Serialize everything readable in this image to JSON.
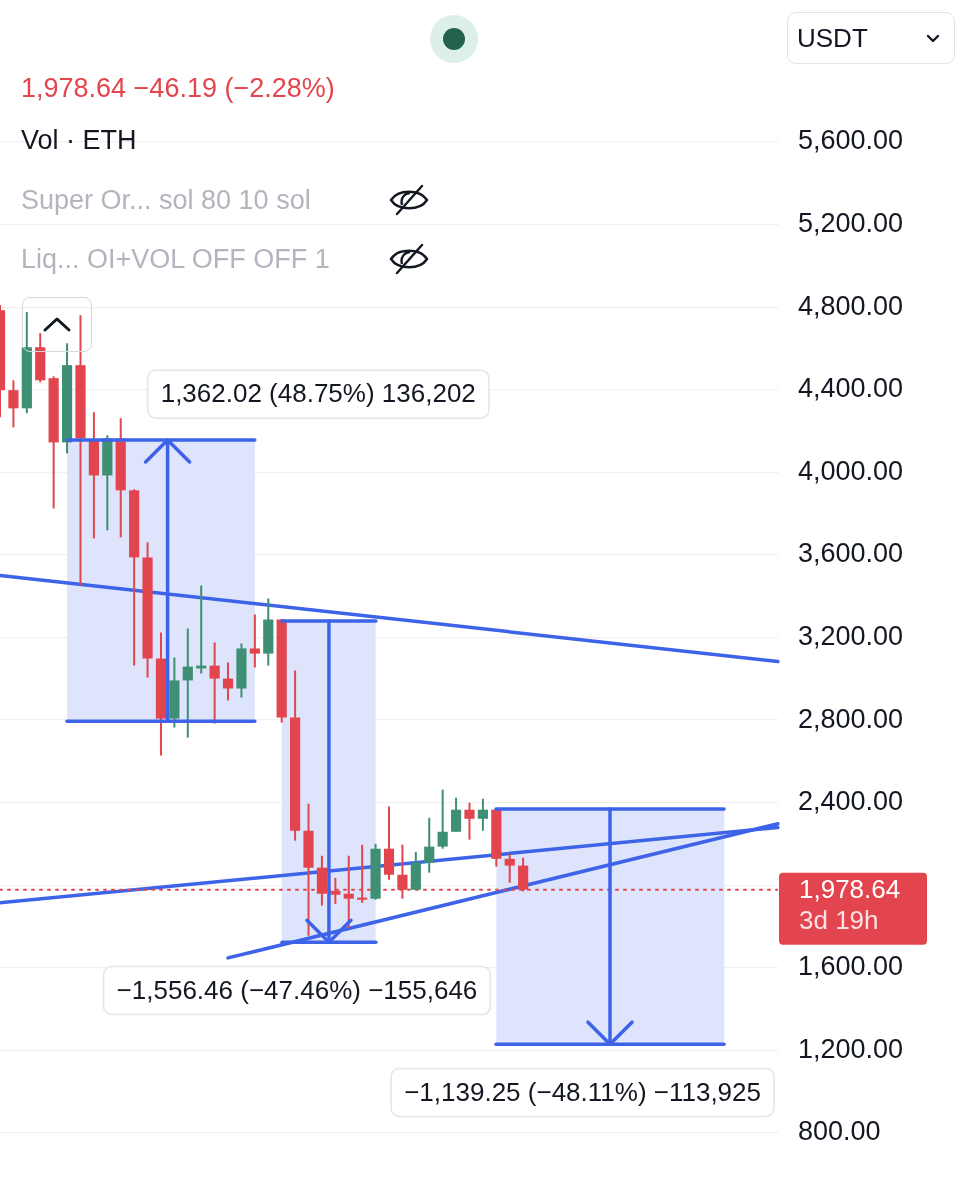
{
  "chart_data": {
    "type": "candlestick",
    "subtitle": "1,978.64 −46.19 (−2.28%)",
    "ylabel": "USDT",
    "annotations": [
      "Vol · ETH",
      "Super Or... sol 80 10 sol",
      "Liq... OI+VOL OFF OFF 1"
    ],
    "categories": [
      null,
      null,
      null,
      null,
      null,
      null,
      null,
      null,
      null,
      null,
      null,
      null,
      null,
      null,
      null,
      null,
      null,
      null,
      null,
      null,
      null,
      null,
      null,
      null,
      null,
      null,
      null,
      null,
      null,
      null,
      null,
      null,
      null,
      null,
      null,
      null,
      null,
      null,
      null,
      null,
      null,
      null,
      null,
      null,
      null,
      null,
      null,
      null,
      null,
      null,
      null,
      null,
      null,
      null,
      null,
      null,
      null,
      null,
      null
    ],
    "series": [
      {
        "ohlc": [
          [
            4785,
            4810,
            4267,
            4398
          ],
          [
            4398,
            4446,
            4218,
            4310
          ],
          [
            4310,
            4776,
            4286,
            4606
          ],
          [
            4606,
            4674,
            4436,
            4446
          ],
          [
            4456,
            4465,
            3825,
            4145
          ],
          [
            4145,
            4625,
            4092,
            4519
          ],
          [
            4519,
            4761,
            3452,
            4165
          ],
          [
            4155,
            4291,
            3680,
            3985
          ],
          [
            3985,
            4179,
            3719,
            4165
          ],
          [
            4165,
            4262,
            3685,
            3913
          ],
          [
            3913,
            3918,
            3064,
            3588
          ],
          [
            3588,
            3661,
            3006,
            3098
          ],
          [
            3098,
            3224,
            2628,
            2807
          ],
          [
            2807,
            3103,
            2764,
            2992
          ],
          [
            2992,
            3244,
            2715,
            3059
          ],
          [
            3050,
            3452,
            3025,
            3064
          ],
          [
            3064,
            3176,
            2783,
            3001
          ],
          [
            3001,
            3079,
            2895,
            2953
          ],
          [
            2953,
            3171,
            2909,
            3147
          ],
          [
            3147,
            3312,
            3055,
            3122
          ],
          [
            3122,
            3389,
            3064,
            3287
          ],
          [
            3287,
            3290,
            2788,
            2812
          ],
          [
            2812,
            3040,
            2216,
            2264
          ],
          [
            2264,
            2395,
            1755,
            2085
          ],
          [
            2085,
            2143,
            1901,
            1959
          ],
          [
            1973,
            2036,
            1910,
            1954
          ],
          [
            1959,
            2143,
            1794,
            1935
          ],
          [
            1940,
            2196,
            1915,
            1930
          ],
          [
            1935,
            2201,
            1930,
            2177
          ],
          [
            2177,
            2381,
            2027,
            2051
          ],
          [
            2051,
            2196,
            1935,
            1978
          ],
          [
            1978,
            2162,
            1978,
            2109
          ],
          [
            2109,
            2327,
            2061,
            2187
          ],
          [
            2187,
            2463,
            2177,
            2259
          ],
          [
            2259,
            2424,
            2259,
            2366
          ],
          [
            2366,
            2400,
            2221,
            2322
          ],
          [
            2322,
            2419,
            2264,
            2366
          ],
          [
            2366,
            2371,
            2090,
            2128
          ],
          [
            2128,
            2153,
            2012,
            2095
          ],
          [
            2095,
            2133,
            1970,
            1978.64
          ],
          null,
          null,
          null,
          null,
          null,
          null,
          null,
          null,
          null,
          null,
          null,
          null,
          null,
          null,
          null,
          null,
          null,
          null,
          null
        ],
        "colors": [
          "#e2454d",
          "#e2454d",
          "#3f8f74",
          "#e2454d",
          "#e2454d",
          "#3f8f74",
          "#e2454d",
          "#e2454d",
          "#3f8f74",
          "#e2454d",
          "#e2454d",
          "#e2454d",
          "#e2454d",
          "#3f8f74",
          "#3f8f74",
          "#3f8f74",
          "#e2454d",
          "#e2454d",
          "#3f8f74",
          "#e2454d",
          "#3f8f74",
          "#e2454d",
          "#e2454d",
          "#e2454d",
          "#e2454d",
          "#e2454d",
          "#e2454d",
          "#e2454d",
          "#3f8f74",
          "#e2454d",
          "#e2454d",
          "#3f8f74",
          "#3f8f74",
          "#3f8f74",
          "#3f8f74",
          "#e2454d",
          "#3f8f74",
          "#e2454d",
          "#e2454d",
          "#e2454d",
          null,
          null,
          null,
          null,
          null,
          null,
          null,
          null,
          null,
          null,
          null,
          null,
          null,
          null,
          null,
          null,
          null,
          null,
          null
        ]
      },
      {
        "type": "line",
        "color": "#3d63e8",
        "values": [
          3500,
          null,
          null,
          null,
          null,
          null,
          null,
          null,
          null,
          null,
          null,
          null,
          null,
          null,
          null,
          null,
          null,
          null,
          null,
          null,
          null,
          null,
          null,
          null,
          null,
          null,
          null,
          null,
          null,
          null,
          null,
          null,
          null,
          null,
          null,
          null,
          null,
          null,
          null,
          null,
          null,
          null,
          null,
          null,
          null,
          null,
          null,
          null,
          null,
          null,
          null,
          null,
          null,
          null,
          null,
          null,
          null,
          null,
          3084
        ]
      },
      {
        "type": "line",
        "color": "#3d63e8",
        "values": [
          1915,
          null,
          null,
          null,
          null,
          null,
          null,
          null,
          null,
          null,
          null,
          null,
          null,
          null,
          null,
          null,
          null,
          null,
          null,
          null,
          null,
          null,
          null,
          null,
          null,
          null,
          null,
          null,
          null,
          null,
          null,
          null,
          null,
          null,
          null,
          null,
          null,
          null,
          null,
          null,
          null,
          null,
          null,
          null,
          null,
          null,
          null,
          null,
          null,
          null,
          null,
          null,
          null,
          null,
          null,
          null,
          null,
          null,
          2280
        ]
      },
      {
        "type": "line",
        "color": "#3d63e8",
        "values": [
          null,
          null,
          null,
          null,
          null,
          null,
          null,
          null,
          null,
          null,
          null,
          null,
          null,
          null,
          null,
          null,
          null,
          1648,
          null,
          null,
          null,
          null,
          null,
          null,
          null,
          null,
          null,
          null,
          null,
          null,
          null,
          null,
          null,
          null,
          null,
          null,
          null,
          null,
          null,
          null,
          null,
          null,
          null,
          null,
          null,
          null,
          null,
          null,
          null,
          null,
          null,
          null,
          null,
          null,
          null,
          null,
          null,
          null,
          2298
        ]
      }
    ],
    "bands": [
      {
        "axis": "y",
        "from": 2794,
        "to": 4156,
        "label": "1,362.02 (48.75%) 136,202",
        "color": "#dee4fb"
      },
      {
        "axis": "y",
        "from": 3279.5,
        "to": 1723,
        "label": "−1,556.46 (−47.46%) −155,646",
        "color": "#dee4fb"
      },
      {
        "axis": "y",
        "from": 2368,
        "to": 1229,
        "label": "−1,139.25 (−48.11%) −113,925",
        "color": "#dee4fb"
      }
    ],
    "ylim": [
      800,
      5600
    ],
    "yticks": [
      {
        "value": 800,
        "label": "800.00"
      },
      {
        "value": 1200,
        "label": "1,200.00"
      },
      {
        "value": 1600,
        "label": "1,600.00"
      },
      {
        "value": 2000,
        "label": null
      },
      {
        "value": 2400,
        "label": "2,400.00"
      },
      {
        "value": 2800,
        "label": "2,800.00"
      },
      {
        "value": 3200,
        "label": "3,200.00"
      },
      {
        "value": 3600,
        "label": "3,600.00"
      },
      {
        "value": 4000,
        "label": "4,000.00"
      },
      {
        "value": 4400,
        "label": "4,400.00"
      },
      {
        "value": 4800,
        "label": "4,800.00"
      },
      {
        "value": 5200,
        "label": "5,200.00"
      },
      {
        "value": 5600,
        "label": "5,600.00"
      }
    ],
    "ref_lines": [
      {
        "axis": "y",
        "value": 1978.64,
        "label": "1,978.64\n3d 19h",
        "color": "#e2454d",
        "line_style": "dotted"
      }
    ],
    "grid": "y",
    "tick_labels": "y"
  }
}
